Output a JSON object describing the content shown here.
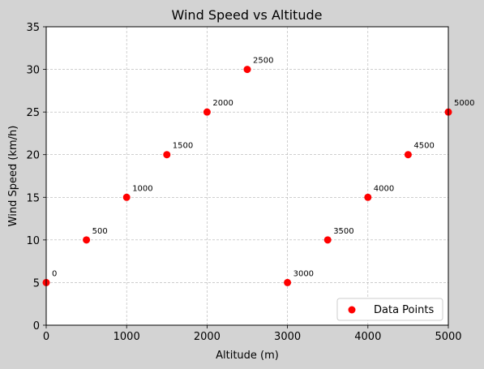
{
  "chart_data": {
    "type": "scatter",
    "title": "Wind Speed vs Altitude",
    "xlabel": "Altitude (m)",
    "ylabel": "Wind Speed (km/h)",
    "xlim": [
      0,
      5000
    ],
    "ylim": [
      0,
      35
    ],
    "xticks": [
      0,
      1000,
      2000,
      3000,
      4000,
      5000
    ],
    "yticks": [
      0,
      5,
      10,
      15,
      20,
      25,
      30,
      35
    ],
    "grid": true,
    "legend_position": "lower-right",
    "series": [
      {
        "name": "Data Points",
        "color": "#ff0000",
        "x": [
          0,
          500,
          1000,
          1500,
          2000,
          2500,
          3000,
          3500,
          4000,
          4500,
          5000
        ],
        "y": [
          5,
          10,
          15,
          20,
          25,
          30,
          5,
          10,
          15,
          20,
          25
        ],
        "annotations": [
          "0",
          "500",
          "1000",
          "1500",
          "2000",
          "2500",
          "3000",
          "3500",
          "4000",
          "4500",
          "5000"
        ]
      }
    ]
  }
}
